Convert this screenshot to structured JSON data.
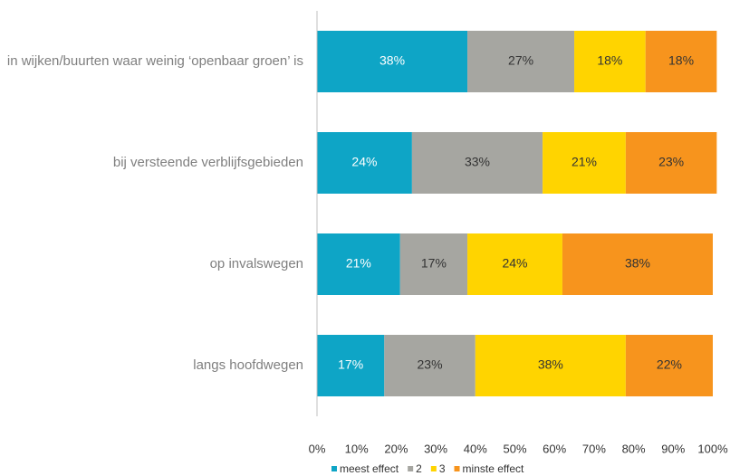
{
  "chart_data": {
    "type": "stacked_bar_horizontal",
    "categories": [
      "in wijken/buurten waar weinig ‘openbaar groen’ is",
      "bij versteende verblijfsgebieden",
      "op invalswegen",
      "langs hoofdwegen"
    ],
    "series": [
      {
        "name": "meest effect",
        "color": "#0ea5c6",
        "values": [
          38,
          24,
          21,
          17
        ],
        "value_labels": [
          "38%",
          "24%",
          "21%",
          "17%"
        ]
      },
      {
        "name": "2",
        "color": "#a6a6a1",
        "values": [
          27,
          33,
          17,
          23
        ],
        "value_labels": [
          "27%",
          "33%",
          "17%",
          "23%"
        ]
      },
      {
        "name": "3",
        "color": "#ffd400",
        "values": [
          18,
          21,
          24,
          38
        ],
        "value_labels": [
          "18%",
          "21%",
          "24%",
          "38%"
        ]
      },
      {
        "name": "minste effect",
        "color": "#f7941d",
        "values": [
          18,
          23,
          38,
          22
        ],
        "value_labels": [
          "18%",
          "23%",
          "38%",
          "22%"
        ]
      }
    ],
    "xlim": [
      0,
      100
    ],
    "xticks": [
      {
        "value": 0,
        "label": "0%"
      },
      {
        "value": 10,
        "label": "10%"
      },
      {
        "value": 20,
        "label": "20%"
      },
      {
        "value": 30,
        "label": "30%"
      },
      {
        "value": 40,
        "label": "40%"
      },
      {
        "value": 50,
        "label": "50%"
      },
      {
        "value": 60,
        "label": "60%"
      },
      {
        "value": 70,
        "label": "70%"
      },
      {
        "value": 80,
        "label": "80%"
      },
      {
        "value": 90,
        "label": "90%"
      },
      {
        "value": 100,
        "label": "100%"
      }
    ],
    "legend": "bottom"
  }
}
